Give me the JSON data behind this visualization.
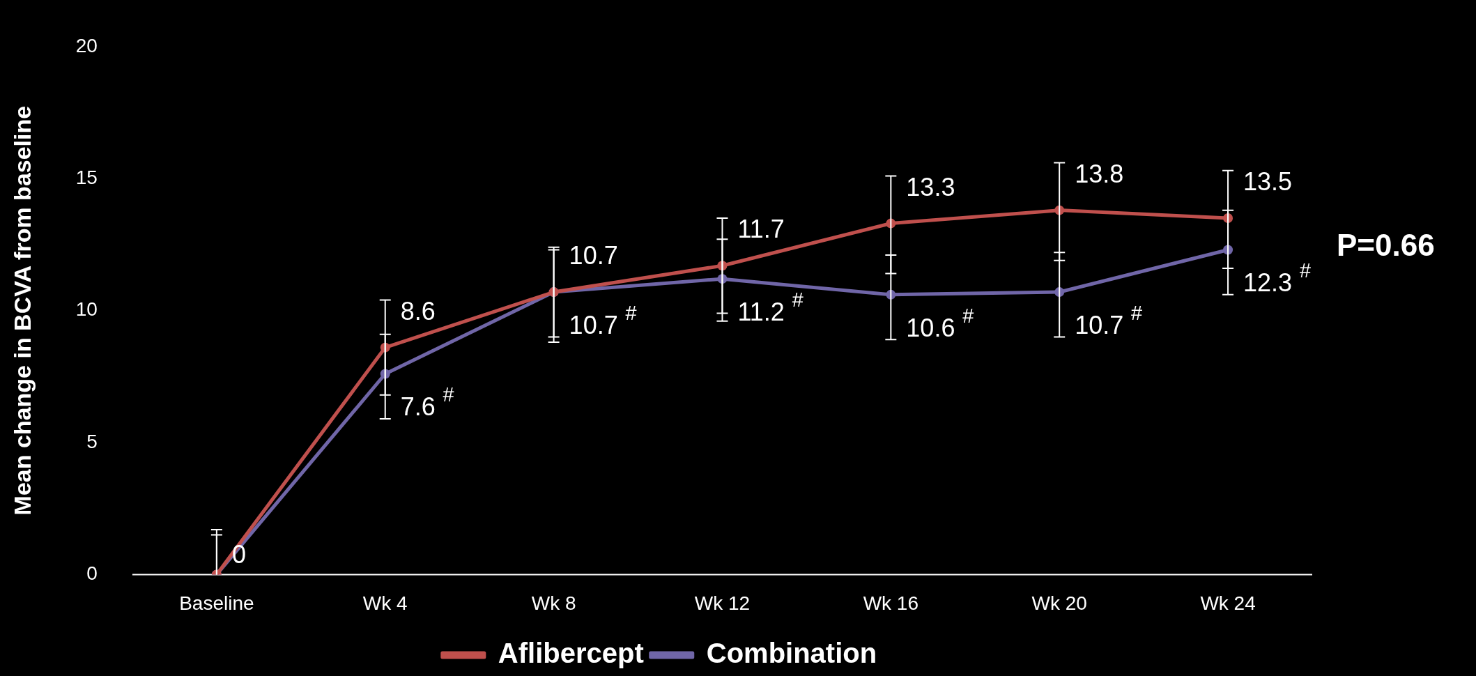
{
  "chart_data": {
    "type": "line",
    "ylabel": "Mean change in BCVA from baseline",
    "categories": [
      "Baseline",
      "Wk 4",
      "Wk 8",
      "Wk 12",
      "Wk 16",
      "Wk 20",
      "Wk 24"
    ],
    "series": [
      {
        "name": "Aflibercept",
        "color": "#c0504d",
        "values": [
          0,
          8.6,
          10.7,
          11.7,
          13.3,
          13.8,
          13.5
        ],
        "errors": [
          [
            0,
            1.7
          ],
          [
            6.8,
            10.4
          ],
          [
            8.8,
            12.4
          ],
          [
            9.9,
            13.5
          ],
          [
            11.4,
            15.1
          ],
          [
            11.9,
            15.6
          ],
          [
            11.6,
            15.3
          ]
        ],
        "value_labels": [
          null,
          "8.6",
          "10.7",
          "11.7",
          "13.3",
          "13.8",
          "13.5"
        ]
      },
      {
        "name": "Combination",
        "color": "#7066a8",
        "values": [
          0,
          7.6,
          10.7,
          11.2,
          10.6,
          10.7,
          12.3
        ],
        "errors": [
          [
            0,
            1.5
          ],
          [
            5.9,
            9.1
          ],
          [
            9.0,
            12.3
          ],
          [
            9.6,
            12.7
          ],
          [
            8.9,
            12.1
          ],
          [
            9.0,
            12.2
          ],
          [
            10.6,
            13.8
          ]
        ],
        "value_labels": [
          "0",
          "7.6$^{#}$",
          "10.7$^{#}$",
          "11.2$^{#}$",
          "10.6$^{#}$",
          "10.7$^{#}$",
          "12.3$^{#}$"
        ]
      }
    ],
    "ylim": [
      0,
      20
    ],
    "yticks": [
      0,
      5,
      10,
      15,
      20
    ],
    "grid": false,
    "legend": "bottom",
    "marker": "circle",
    "line_style": "solid",
    "annotations": [
      "P=0.66"
    ]
  }
}
